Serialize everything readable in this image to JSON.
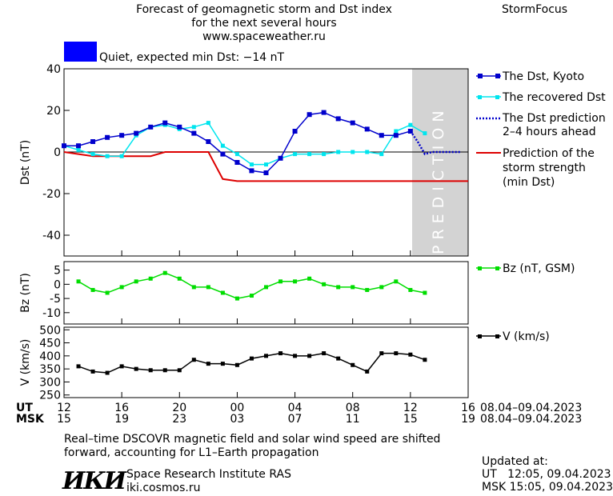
{
  "header": {
    "title_line1": "Forecast of geomagnetic storm and Dst index",
    "title_line2": "for the next several hours",
    "site": "www.spaceweather.ru",
    "brand": "StormFocus",
    "status_text": "Quiet, expected min Dst: −14 nT",
    "status_color": "#0000ff"
  },
  "legend": {
    "dst_kyoto": "The Dst, Kyoto",
    "dst_recovered": "The recovered Dst",
    "dst_prediction_1": "The Dst prediction",
    "dst_prediction_2": "2–4 hours ahead",
    "storm_1": "Prediction of the",
    "storm_2": "storm strength",
    "storm_3": "(min Dst)",
    "bz": "Bz (nT, GSM)",
    "v": "V (km/s)"
  },
  "prediction_label": "PREDICTION",
  "time_axis": {
    "ut_label": "UT",
    "msk_label": "MSK",
    "ut_ticks": [
      "12",
      "16",
      "20",
      "00",
      "04",
      "08",
      "12",
      "16"
    ],
    "msk_ticks": [
      "15",
      "19",
      "23",
      "03",
      "07",
      "11",
      "15",
      "19"
    ],
    "date_range_ut": "08.04–09.04.2023",
    "date_range_msk": "08.04–09.04.2023"
  },
  "footer": {
    "note_line1": "Real–time DSCOVR magnetic field and solar wind speed are shifted",
    "note_line2": "forward, accounting for L1–Earth propagation",
    "logo_text": "ИКИ",
    "institute": "Space Research Institute RAS",
    "institute_url": "iki.cosmos.ru",
    "updated_label": "Updated at:",
    "updated_ut": "UT   12:05, 09.04.2023",
    "updated_msk": "MSK 15:05, 09.04.2023"
  },
  "colors": {
    "dst_kyoto": "#0000cc",
    "dst_recovered": "#00e5ee",
    "dst_prediction": "#0000cc",
    "storm": "#dd0000",
    "bz": "#00dd00",
    "v": "#000000",
    "prediction_band": "#d3d3d3"
  },
  "chart_data": [
    {
      "type": "line",
      "ylabel": "Dst (nT)",
      "ylim": [
        -50,
        40
      ],
      "yticks": [
        40,
        20,
        0,
        -20,
        -40
      ],
      "xlim_hours": [
        0,
        28
      ],
      "prediction_start_hour": 24,
      "series": [
        {
          "name": "The Dst, Kyoto",
          "x": [
            0,
            1,
            2,
            3,
            4,
            5,
            6,
            7,
            8,
            9,
            10,
            11,
            12,
            13,
            14,
            15,
            16,
            17,
            18,
            19,
            20,
            21,
            22,
            23,
            24
          ],
          "values": [
            3,
            3,
            5,
            7,
            8,
            9,
            12,
            14,
            12,
            9,
            5,
            -1,
            -5,
            -9,
            -10,
            -3,
            10,
            18,
            19,
            16,
            14,
            11,
            8,
            8,
            10
          ]
        },
        {
          "name": "The recovered Dst",
          "x": [
            0,
            1,
            2,
            3,
            4,
            5,
            6,
            7,
            8,
            9,
            10,
            11,
            12,
            13,
            14,
            15,
            16,
            17,
            18,
            19,
            20,
            21,
            22,
            23,
            24,
            25
          ],
          "values": [
            3,
            1,
            -1,
            -2,
            -2,
            8,
            12,
            13,
            11,
            12,
            14,
            3,
            -1,
            -6,
            -6,
            -3,
            -1,
            -1,
            -1,
            0,
            0,
            0,
            -1,
            10,
            13,
            9
          ]
        },
        {
          "name": "The Dst prediction",
          "x": [
            24,
            24.5,
            25,
            25.5,
            26,
            26.5,
            27,
            27.5
          ],
          "values": [
            10,
            5,
            -1,
            0,
            0,
            0,
            0,
            0
          ]
        },
        {
          "name": "Prediction of the storm strength",
          "x": [
            0,
            1,
            2,
            6,
            7,
            9,
            10,
            11,
            12,
            13,
            28
          ],
          "values": [
            0,
            -1,
            -2,
            -2,
            0,
            0,
            0,
            -13,
            -14,
            -14,
            -14
          ]
        }
      ]
    },
    {
      "type": "line",
      "ylabel": "Bz (nT)",
      "ylim": [
        -14,
        8
      ],
      "yticks": [
        5,
        0,
        -5,
        -10
      ],
      "series": [
        {
          "name": "Bz (nT, GSM)",
          "x": [
            1,
            2,
            3,
            4,
            5,
            6,
            7,
            8,
            9,
            10,
            11,
            12,
            13,
            14,
            15,
            16,
            17,
            18,
            19,
            20,
            21,
            22,
            23,
            24,
            25
          ],
          "values": [
            1,
            -2,
            -3,
            -1,
            1,
            2,
            4,
            2,
            -1,
            -1,
            -3,
            -5,
            -4,
            -1,
            1,
            1,
            2,
            0,
            -1,
            -1,
            -2,
            -1,
            1,
            -2,
            -3
          ]
        }
      ]
    },
    {
      "type": "line",
      "ylabel": "V (km/s)",
      "ylim": [
        240,
        510
      ],
      "yticks": [
        500,
        450,
        400,
        350,
        300,
        250
      ],
      "series": [
        {
          "name": "V (km/s)",
          "x": [
            1,
            2,
            3,
            4,
            5,
            6,
            7,
            8,
            9,
            10,
            11,
            12,
            13,
            14,
            15,
            16,
            17,
            18,
            19,
            20,
            21,
            22,
            23,
            24,
            25
          ],
          "values": [
            360,
            340,
            335,
            360,
            350,
            345,
            345,
            345,
            385,
            370,
            370,
            365,
            390,
            400,
            410,
            400,
            400,
            410,
            390,
            365,
            340,
            410,
            410,
            405,
            385
          ]
        }
      ]
    }
  ]
}
